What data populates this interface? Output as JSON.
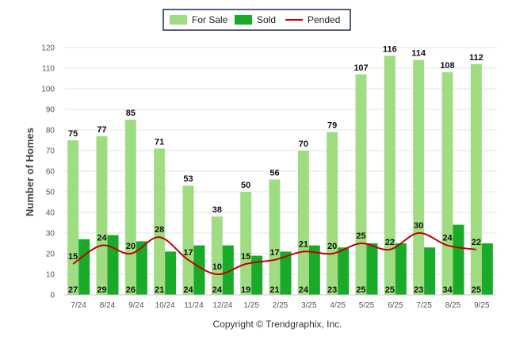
{
  "chart_data": {
    "type": "bar",
    "categories": [
      "7/24",
      "8/24",
      "9/24",
      "10/24",
      "11/24",
      "12/24",
      "1/25",
      "2/25",
      "3/25",
      "4/25",
      "5/25",
      "6/25",
      "7/25",
      "8/25",
      "9/25"
    ],
    "series": [
      {
        "name": "For Sale",
        "type": "bar",
        "color": "#a0dc82",
        "values": [
          75,
          77,
          85,
          71,
          53,
          38,
          50,
          56,
          70,
          79,
          107,
          116,
          114,
          108,
          112
        ]
      },
      {
        "name": "Sold",
        "type": "bar",
        "color": "#19aa2a",
        "values": [
          27,
          29,
          26,
          21,
          24,
          24,
          19,
          21,
          24,
          23,
          25,
          25,
          23,
          34,
          25
        ]
      },
      {
        "name": "Pended",
        "type": "line",
        "color": "#c00000",
        "values": [
          15,
          24,
          20,
          28,
          17,
          10,
          15,
          17,
          21,
          20,
          25,
          22,
          30,
          24,
          22
        ]
      }
    ],
    "ylabel": "Number of Homes",
    "ylim": [
      0,
      120
    ],
    "yticks": [
      0,
      10,
      20,
      30,
      40,
      50,
      60,
      70,
      80,
      90,
      100,
      110,
      120
    ],
    "grid": true,
    "legend_position": "top-center"
  },
  "footer": {
    "copyright": "Copyright © Trendgraphix, Inc."
  }
}
